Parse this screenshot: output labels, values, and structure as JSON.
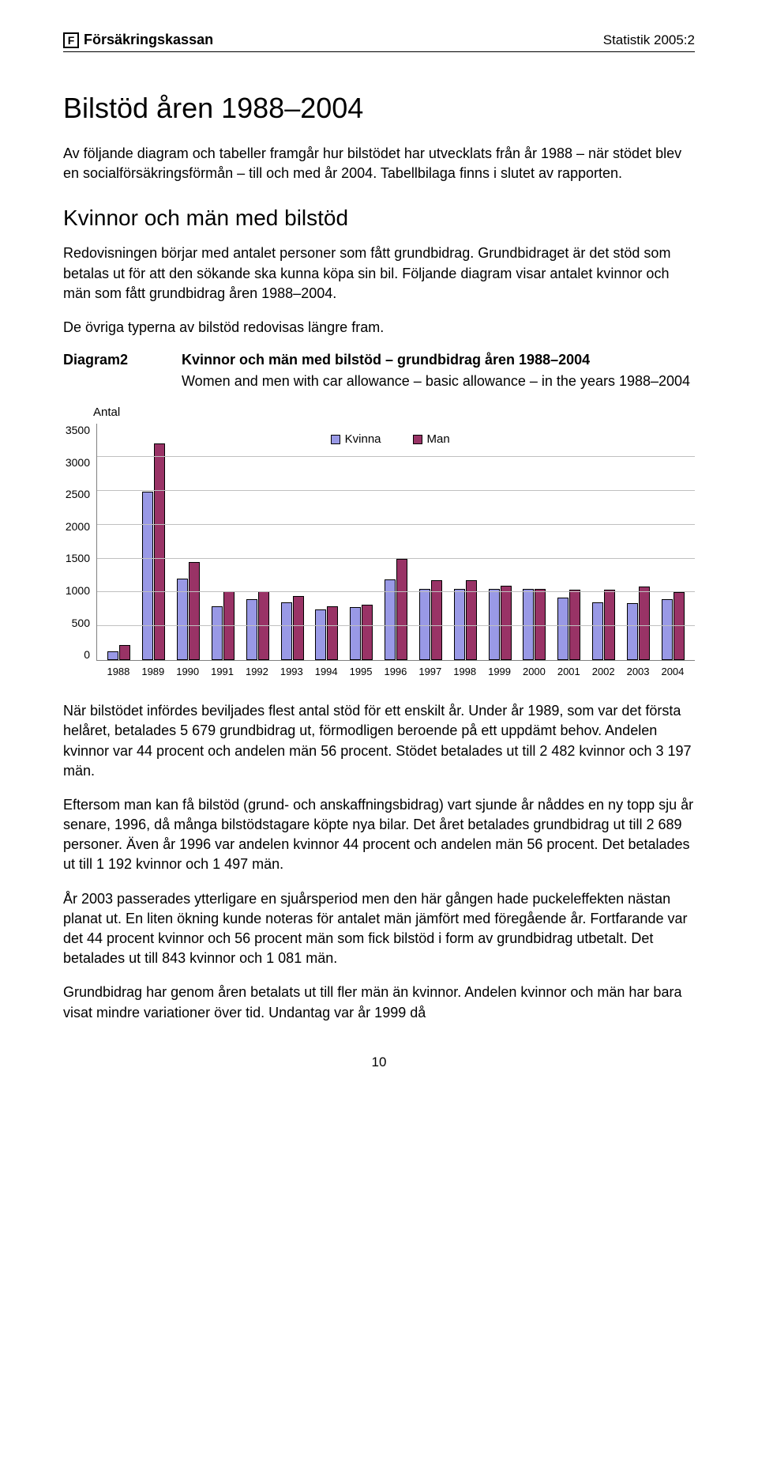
{
  "header": {
    "logo_brand": "Försäkringskassan",
    "right": "Statistik 2005:2"
  },
  "title": "Bilstöd åren 1988–2004",
  "intro": "Av följande diagram och tabeller framgår hur bilstödet har utvecklats från år 1988 – när stödet blev en socialförsäkringsförmån – till och med år 2004. Tabellbilaga finns i slutet av rapporten.",
  "section2_title": "Kvinnor och män med bilstöd",
  "section2_p1": "Redovisningen börjar med antalet personer som fått grundbidrag. Grundbidraget är det stöd som betalas ut för att den sökande ska kunna köpa sin bil. Följande diagram visar antalet kvinnor och män som fått grundbidrag åren 1988–2004.",
  "section2_p2": "De övriga typerna av bilstöd redovisas längre fram.",
  "diagram": {
    "label": "Diagram2",
    "title_sv": "Kvinnor och män med bilstöd – grundbidrag åren 1988–2004",
    "title_en": "Women and men with car allowance – basic allowance – in the years 1988–2004"
  },
  "chart": {
    "type": "bar",
    "y_label": "Antal",
    "ylim": [
      0,
      3500
    ],
    "ytick_step": 500,
    "yticks": [
      "3500",
      "3000",
      "2500",
      "2000",
      "1500",
      "1000",
      "500",
      "0"
    ],
    "categories": [
      "1988",
      "1989",
      "1990",
      "1991",
      "1992",
      "1993",
      "1994",
      "1995",
      "1996",
      "1997",
      "1998",
      "1999",
      "2000",
      "2001",
      "2002",
      "2003",
      "2004"
    ],
    "series": [
      {
        "name": "Kvinna",
        "color": "#9999e6",
        "values": [
          130,
          2482,
          1200,
          800,
          900,
          850,
          750,
          780,
          1192,
          1050,
          1050,
          1050,
          1050,
          920,
          850,
          843,
          900
        ]
      },
      {
        "name": "Man",
        "color": "#993366",
        "values": [
          220,
          3197,
          1450,
          1020,
          1020,
          950,
          800,
          820,
          1497,
          1180,
          1180,
          1100,
          1050,
          1040,
          1040,
          1081,
          1000
        ]
      }
    ],
    "grid_color": "#c0c0c0",
    "axis_color": "#808080",
    "background_color": "#ffffff",
    "bar_border": "#000000",
    "tick_fontsize": 14,
    "label_fontsize": 15
  },
  "body_p1": "När bilstödet infördes beviljades flest antal stöd för ett enskilt år. Under år 1989, som var det första helåret, betalades 5 679 grundbidrag ut, förmodligen beroende på ett uppdämt behov. Andelen kvinnor var 44 procent och andelen män 56 procent. Stödet betalades ut till 2 482 kvinnor och 3 197 män.",
  "body_p2": "Eftersom man kan få bilstöd (grund- och anskaffningsbidrag) vart sjunde år nåddes en ny topp sju år senare, 1996, då många bilstödstagare köpte nya bilar. Det året betalades grundbidrag ut till 2 689 personer. Även år 1996 var andelen kvinnor 44 procent och andelen män 56 procent. Det betalades ut till 1 192 kvinnor och 1 497 män.",
  "body_p3": "År 2003 passerades ytterligare en sjuårsperiod men den här gången hade puckeleffekten nästan planat ut. En liten ökning kunde noteras för antalet män jämfört med föregående år. Fortfarande var det 44 procent kvinnor och 56 procent män som fick bilstöd i form av grundbidrag utbetalt. Det betalades ut till 843 kvinnor och 1 081 män.",
  "body_p4": "Grundbidrag har genom åren betalats ut till fler män än kvinnor. Andelen kvinnor och män har bara visat mindre variationer över tid. Undantag var år 1999 då",
  "page_number": "10"
}
